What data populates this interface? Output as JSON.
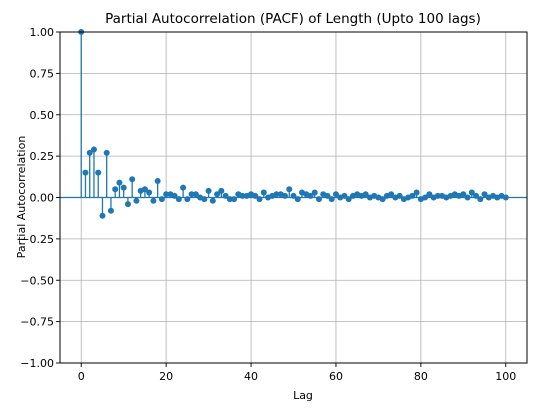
{
  "chart_data": {
    "type": "scatter",
    "title": "Partial Autocorrelation (PACF) of Length (Upto 100 lags)",
    "xlabel": "Lag",
    "ylabel": "Partial Autocorrelation",
    "xlim": [
      -5,
      105
    ],
    "ylim": [
      -1.0,
      1.0
    ],
    "xticks": [
      0,
      20,
      40,
      60,
      80,
      100
    ],
    "xtick_labels": [
      "0",
      "20",
      "40",
      "60",
      "80",
      "100"
    ],
    "yticks": [
      -1.0,
      -0.75,
      -0.5,
      -0.25,
      0.0,
      0.25,
      0.5,
      0.75,
      1.0
    ],
    "ytick_labels": [
      "−1.00",
      "−0.75",
      "−0.50",
      "−0.25",
      "0.00",
      "0.25",
      "0.50",
      "0.75",
      "1.00"
    ],
    "grid": true,
    "series_color": "#1f77b4",
    "x": [
      0,
      1,
      2,
      3,
      4,
      5,
      6,
      7,
      8,
      9,
      10,
      11,
      12,
      13,
      14,
      15,
      16,
      17,
      18,
      19,
      20,
      21,
      22,
      23,
      24,
      25,
      26,
      27,
      28,
      29,
      30,
      31,
      32,
      33,
      34,
      35,
      36,
      37,
      38,
      39,
      40,
      41,
      42,
      43,
      44,
      45,
      46,
      47,
      48,
      49,
      50,
      51,
      52,
      53,
      54,
      55,
      56,
      57,
      58,
      59,
      60,
      61,
      62,
      63,
      64,
      65,
      66,
      67,
      68,
      69,
      70,
      71,
      72,
      73,
      74,
      75,
      76,
      77,
      78,
      79,
      80,
      81,
      82,
      83,
      84,
      85,
      86,
      87,
      88,
      89,
      90,
      91,
      92,
      93,
      94,
      95,
      96,
      97,
      98,
      99,
      100
    ],
    "values": [
      1.0,
      0.15,
      0.27,
      0.29,
      0.15,
      -0.11,
      0.27,
      -0.08,
      0.05,
      0.09,
      0.06,
      -0.04,
      0.11,
      -0.02,
      0.04,
      0.05,
      0.03,
      -0.02,
      0.1,
      -0.01,
      0.02,
      0.02,
      0.01,
      -0.01,
      0.06,
      -0.01,
      0.02,
      0.02,
      0.0,
      -0.01,
      0.04,
      -0.02,
      0.02,
      0.04,
      0.01,
      -0.01,
      -0.01,
      0.02,
      0.01,
      0.01,
      0.02,
      0.01,
      -0.01,
      0.03,
      0.0,
      0.01,
      0.02,
      0.02,
      0.01,
      0.05,
      0.01,
      -0.01,
      0.03,
      0.02,
      0.01,
      0.03,
      -0.01,
      0.02,
      0.01,
      -0.01,
      0.02,
      0.0,
      0.01,
      -0.01,
      0.01,
      0.02,
      0.01,
      0.02,
      0.0,
      0.01,
      0.0,
      -0.01,
      0.01,
      0.02,
      0.0,
      0.01,
      -0.01,
      0.0,
      0.01,
      0.03,
      -0.01,
      0.0,
      0.02,
      0.0,
      0.01,
      0.01,
      0.0,
      0.01,
      0.02,
      0.01,
      0.02,
      0.0,
      0.03,
      0.01,
      -0.01,
      0.02,
      0.0,
      0.01,
      0.0,
      0.01,
      0.0
    ]
  }
}
